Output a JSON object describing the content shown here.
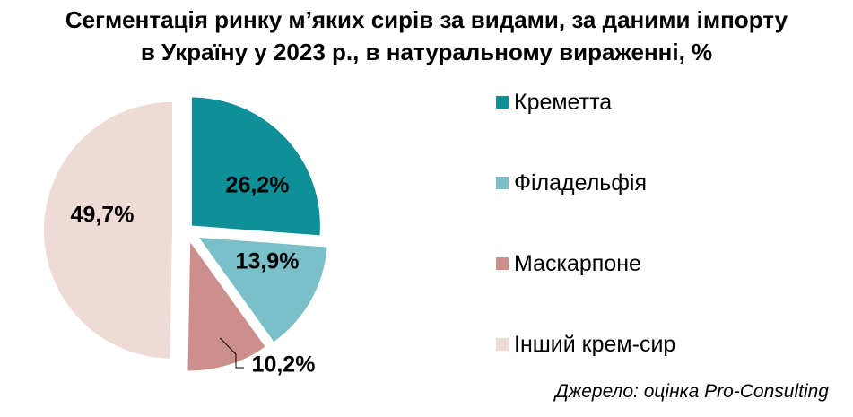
{
  "chart_data": {
    "type": "pie",
    "title_lines": [
      "Сегментація ринку м’яких сирів за видами, за даними імпорту",
      "в Україну у 2023 р., в натуральному вираженні, %"
    ],
    "slices": [
      {
        "label": "Креметта",
        "value": 26.2,
        "value_label": "26,2%",
        "color": "#0f8f97"
      },
      {
        "label": "Філадельфія",
        "value": 13.9,
        "value_label": "13,9%",
        "color": "#7bbfc8"
      },
      {
        "label": "Маскарпоне",
        "value": 10.2,
        "value_label": "10,2%",
        "color": "#cd8f8b"
      },
      {
        "label": "Інший крем-сир",
        "value": 49.7,
        "value_label": "49,7%",
        "color": "#eedbd6"
      }
    ],
    "legend_position": "right",
    "exploded": true
  },
  "source": "Джерело: оцінка Pro-Consulting"
}
